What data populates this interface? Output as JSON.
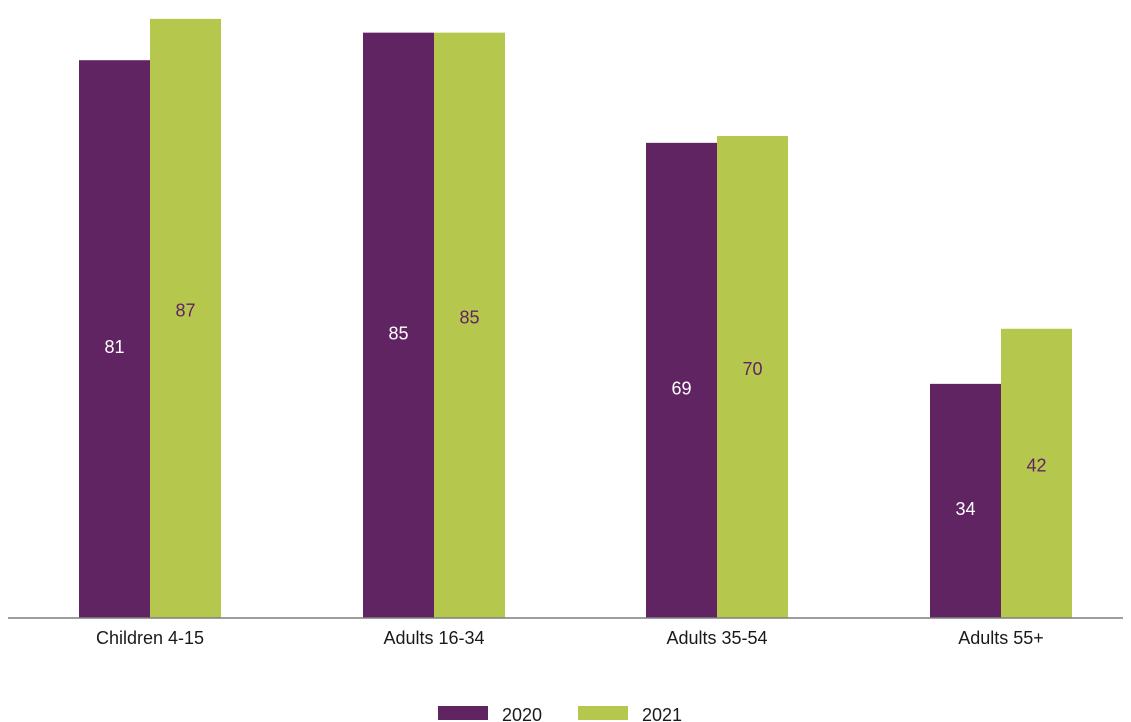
{
  "chart_data": {
    "type": "bar",
    "categories": [
      "Children 4-15",
      "Adults 16-34",
      "Adults 35-54",
      "Adults 55+"
    ],
    "series": [
      {
        "name": "2020",
        "values": [
          81,
          85,
          69,
          34
        ],
        "color": "#612462",
        "label_color": "#ffffff"
      },
      {
        "name": "2021",
        "values": [
          87,
          85,
          70,
          42
        ],
        "color": "#b5c84d",
        "label_color": "#612462"
      }
    ],
    "title": "",
    "xlabel": "",
    "ylabel": "",
    "ylim": [
      0,
      88
    ],
    "grid": false,
    "legend_position": "bottom-center",
    "axis_color": "#7f7f7f"
  }
}
